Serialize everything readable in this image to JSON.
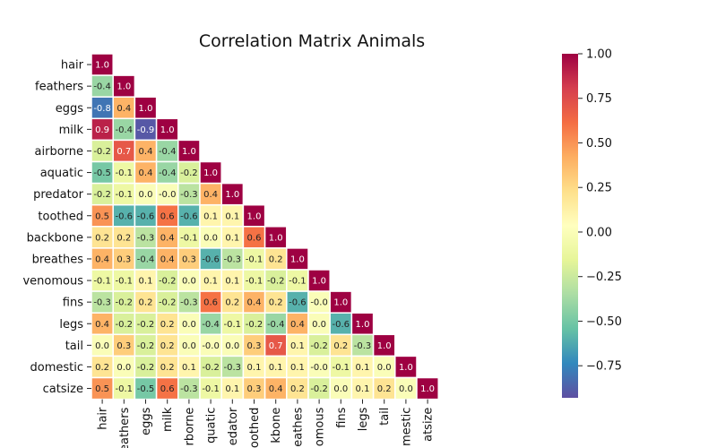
{
  "chart_data": {
    "type": "heatmap",
    "title": "Correlation Matrix Animals",
    "rows": [
      "hair",
      "feathers",
      "eggs",
      "milk",
      "airborne",
      "aquatic",
      "predator",
      "toothed",
      "backbone",
      "breathes",
      "venomous",
      "fins",
      "legs",
      "tail",
      "domestic",
      "catsize"
    ],
    "columns": [
      "hair",
      "feathers",
      "eggs",
      "milk",
      "airborne",
      "aquatic",
      "predator",
      "toothed",
      "backbone",
      "breathes",
      "venomous",
      "fins",
      "legs",
      "tail",
      "domestic",
      "catsize"
    ],
    "column_labels_shown": [
      "hair",
      "eathers",
      "eggs",
      "milk",
      "rborne",
      "quatic",
      "edator",
      "oothed",
      "kbone",
      "eathes",
      "omous",
      "fins",
      "legs",
      "tail",
      "mestic",
      "atsize"
    ],
    "values": [
      [
        1.0
      ],
      [
        -0.4,
        1.0
      ],
      [
        -0.8,
        0.4,
        1.0
      ],
      [
        0.9,
        -0.4,
        -0.9,
        1.0
      ],
      [
        -0.2,
        0.7,
        0.4,
        -0.4,
        1.0
      ],
      [
        -0.5,
        -0.1,
        0.4,
        -0.4,
        -0.2,
        1.0
      ],
      [
        -0.2,
        -0.1,
        0.0,
        -0.0,
        -0.3,
        0.4,
        1.0
      ],
      [
        0.5,
        -0.6,
        -0.6,
        0.6,
        -0.6,
        0.1,
        0.1,
        1.0
      ],
      [
        0.2,
        0.2,
        -0.3,
        0.4,
        -0.1,
        0.0,
        0.1,
        0.6,
        1.0
      ],
      [
        0.4,
        0.3,
        -0.4,
        0.4,
        0.3,
        -0.6,
        -0.3,
        -0.1,
        0.2,
        1.0
      ],
      [
        -0.1,
        -0.1,
        0.1,
        -0.2,
        0.0,
        0.1,
        0.1,
        -0.1,
        -0.2,
        -0.1,
        1.0
      ],
      [
        -0.3,
        -0.2,
        0.2,
        -0.2,
        -0.3,
        0.6,
        0.2,
        0.4,
        0.2,
        -0.6,
        -0.0,
        1.0
      ],
      [
        0.4,
        -0.2,
        -0.2,
        0.2,
        0.0,
        -0.4,
        -0.1,
        -0.2,
        -0.4,
        0.4,
        0.0,
        -0.6,
        1.0
      ],
      [
        0.0,
        0.3,
        -0.2,
        0.2,
        0.0,
        -0.0,
        0.0,
        0.3,
        0.7,
        0.1,
        -0.2,
        0.2,
        -0.3,
        1.0
      ],
      [
        0.2,
        0.0,
        -0.2,
        0.2,
        0.1,
        -0.2,
        -0.3,
        0.1,
        0.1,
        0.1,
        -0.0,
        -0.1,
        0.1,
        0.0,
        1.0
      ],
      [
        0.5,
        -0.1,
        -0.5,
        0.6,
        -0.3,
        -0.1,
        0.1,
        0.3,
        0.4,
        0.2,
        -0.2,
        0.0,
        0.1,
        0.2,
        0.0,
        1.0
      ]
    ],
    "mask": "lower-triangle",
    "colormap": "Spectral_r",
    "vmin": -0.93,
    "vmax": 1.0,
    "colorbar_ticks": [
      1.0,
      0.75,
      0.5,
      0.25,
      0.0,
      -0.25,
      -0.5,
      -0.75
    ],
    "colorbar_tick_labels": [
      "1.00",
      "0.75",
      "0.50",
      "0.25",
      "0.00",
      "−0.25",
      "−0.50",
      "−0.75"
    ],
    "colorbar_position": "right",
    "grid_line_color": "#ffffff"
  }
}
